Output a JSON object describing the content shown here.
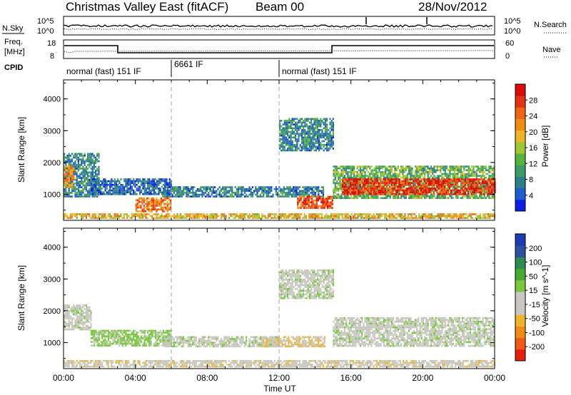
{
  "header": {
    "title": "Christmas Valley East (fitACF)",
    "beam": "Beam 00",
    "date": "28/Nov/2012"
  },
  "strip_nsky": {
    "left_label": "N.Sky",
    "right_label": "N.Search",
    "tick_hi": "10^5",
    "tick_lo": "10^0"
  },
  "strip_freq": {
    "left_label_1": "Freq.",
    "left_label_2": "[MHz]",
    "right_label": "Nave",
    "left_ticks": [
      "18",
      "8"
    ],
    "right_ticks": [
      "60",
      "0"
    ]
  },
  "cpid": {
    "label": "CPID",
    "segments": [
      {
        "name": "normal (fast) 151 IF",
        "start_h": 0,
        "end_h": 6
      },
      {
        "name": "6661 IF",
        "start_h": 6,
        "end_h": 12
      },
      {
        "name": "normal (fast) 151 IF",
        "start_h": 12,
        "end_h": 24
      }
    ]
  },
  "axes": {
    "x_label": "Time UT",
    "x_ticks": [
      "00:00",
      "04:00",
      "08:00",
      "12:00",
      "16:00",
      "20:00",
      "00:00"
    ],
    "y_label": "Slant Range [km]",
    "y_ticks": [
      "1000",
      "2000",
      "3000",
      "4000"
    ]
  },
  "colorbars": {
    "power": {
      "label": "Power [dB]",
      "ticks": [
        "4",
        "8",
        "12",
        "16",
        "20",
        "24",
        "28"
      ],
      "colors": [
        "#0a1fe6",
        "#1e5ad2",
        "#2d7d8c",
        "#3c9a64",
        "#56b43c",
        "#a0c832",
        "#f0b428",
        "#f08c14",
        "#f06414",
        "#e63214",
        "#dc0a0a"
      ]
    },
    "velocity": {
      "label": "Velocity [m s^-1]",
      "ticks": [
        "200",
        "100",
        "50",
        "15",
        "-15",
        "-50",
        "-100",
        "-200"
      ],
      "colors": [
        "#1e3cb4",
        "#2d50a0",
        "#2d8c50",
        "#46aa32",
        "#78c83c",
        "#c8c8c0",
        "#c8c8c0",
        "#f0b428",
        "#f08c14",
        "#f05a14",
        "#e61e0a"
      ]
    }
  },
  "chart_data": [
    {
      "type": "heatmap",
      "panel": "power",
      "xlabel": "Time UT",
      "ylabel": "Slant Range [km]",
      "xlim": [
        0,
        24
      ],
      "ylim": [
        180,
        4600
      ],
      "units": "dB",
      "features": [
        {
          "t0": 0.0,
          "t1": 2.0,
          "r0": 900,
          "r1": 2300,
          "value": 8
        },
        {
          "t0": 0.0,
          "t1": 0.6,
          "r0": 1200,
          "r1": 1900,
          "value": 20
        },
        {
          "t0": 1.5,
          "t1": 6.0,
          "r0": 1000,
          "r1": 1500,
          "value": 6
        },
        {
          "t0": 5.5,
          "t1": 14.5,
          "r0": 900,
          "r1": 1250,
          "value": 7
        },
        {
          "t0": 4.0,
          "t1": 6.0,
          "r0": 450,
          "r1": 900,
          "value": 22
        },
        {
          "t0": 0.0,
          "t1": 24.0,
          "r0": 250,
          "r1": 400,
          "value": 18
        },
        {
          "t0": 12.0,
          "t1": 15.0,
          "r0": 2400,
          "r1": 3400,
          "value": 8
        },
        {
          "t0": 13.0,
          "t1": 15.0,
          "r0": 550,
          "r1": 950,
          "value": 24
        },
        {
          "t0": 15.0,
          "t1": 24.0,
          "r0": 900,
          "r1": 1900,
          "value": 12
        },
        {
          "t0": 15.5,
          "t1": 24.0,
          "r0": 1000,
          "r1": 1500,
          "value": 26
        }
      ]
    },
    {
      "type": "heatmap",
      "panel": "velocity",
      "xlabel": "Time UT",
      "ylabel": "Slant Range [km]",
      "xlim": [
        0,
        24
      ],
      "ylim": [
        180,
        4600
      ],
      "units": "m s^-1",
      "features": [
        {
          "t0": 0.0,
          "t1": 1.5,
          "r0": 1400,
          "r1": 2200,
          "value": 0
        },
        {
          "t0": 1.5,
          "t1": 6.0,
          "r0": 900,
          "r1": 1400,
          "value": 30
        },
        {
          "t0": 5.5,
          "t1": 12.0,
          "r0": 900,
          "r1": 1200,
          "value": 0
        },
        {
          "t0": 11.0,
          "t1": 14.5,
          "r0": 900,
          "r1": 1200,
          "value": -50
        },
        {
          "t0": 0.0,
          "t1": 24.0,
          "r0": 250,
          "r1": 450,
          "value": -40
        },
        {
          "t0": 12.0,
          "t1": 15.0,
          "r0": 2400,
          "r1": 3300,
          "value": 0
        },
        {
          "t0": 15.0,
          "t1": 24.0,
          "r0": 900,
          "r1": 1800,
          "value": 0
        }
      ]
    }
  ]
}
